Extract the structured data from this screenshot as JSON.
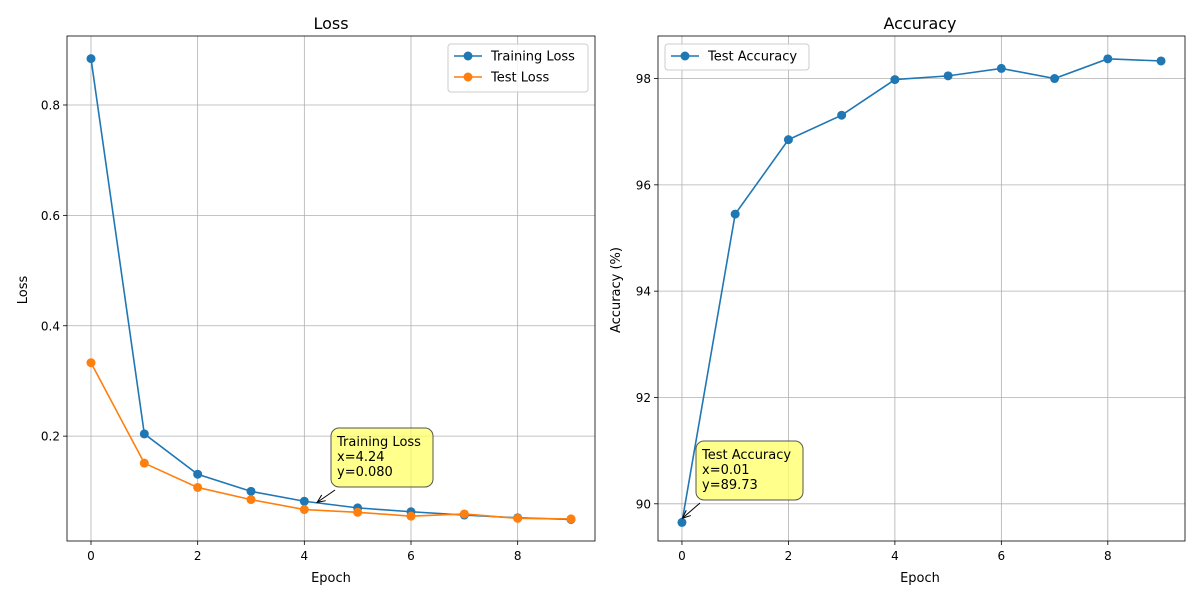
{
  "colors": {
    "blue": "#1f77b4",
    "orange": "#ff7f0e",
    "grid": "#b0b0b0",
    "annotation_bg": "#ffff66"
  },
  "chart_data": [
    {
      "type": "line",
      "title": "Loss",
      "xlabel": "Epoch",
      "ylabel": "Loss",
      "xlim": [
        -0.45,
        9.45
      ],
      "ylim": [
        0.01,
        0.925
      ],
      "xticks": [
        0,
        2,
        4,
        6,
        8
      ],
      "yticks": [
        0.2,
        0.4,
        0.6,
        0.8
      ],
      "ytick_labels": [
        "0.2",
        "0.4",
        "0.6",
        "0.8"
      ],
      "grid": true,
      "legend_position": "top-right",
      "series": [
        {
          "name": "Training Loss",
          "color": "#1f77b4",
          "marker": "circle",
          "x": [
            0,
            1,
            2,
            3,
            4,
            5,
            6,
            7,
            8,
            9
          ],
          "y": [
            0.884,
            0.204,
            0.131,
            0.1,
            0.082,
            0.07,
            0.063,
            0.057,
            0.052,
            0.049
          ]
        },
        {
          "name": "Test Loss",
          "color": "#ff7f0e",
          "marker": "circle",
          "x": [
            0,
            1,
            2,
            3,
            4,
            5,
            6,
            7,
            8,
            9
          ],
          "y": [
            0.333,
            0.151,
            0.107,
            0.085,
            0.067,
            0.062,
            0.055,
            0.059,
            0.051,
            0.05
          ]
        }
      ],
      "annotation": {
        "series": "Training Loss",
        "lines": [
          "Training Loss",
          "x=4.24",
          "y=0.080"
        ],
        "point": [
          4.24,
          0.08
        ]
      }
    },
    {
      "type": "line",
      "title": "Accuracy",
      "xlabel": "Epoch",
      "ylabel": "Accuracy (%)",
      "xlim": [
        -0.45,
        9.45
      ],
      "ylim": [
        89.3,
        98.8
      ],
      "xticks": [
        0,
        2,
        4,
        6,
        8
      ],
      "yticks": [
        90,
        92,
        94,
        96,
        98
      ],
      "ytick_labels": [
        "90",
        "92",
        "94",
        "96",
        "98"
      ],
      "grid": true,
      "legend_position": "top-left",
      "series": [
        {
          "name": "Test Accuracy",
          "color": "#1f77b4",
          "marker": "circle",
          "x": [
            0,
            1,
            2,
            3,
            4,
            5,
            6,
            7,
            8,
            9
          ],
          "y": [
            89.65,
            95.45,
            96.85,
            97.31,
            97.98,
            98.05,
            98.19,
            98.0,
            98.37,
            98.33
          ]
        }
      ],
      "annotation": {
        "series": "Test Accuracy",
        "lines": [
          "Test Accuracy",
          "x=0.01",
          "y=89.73"
        ],
        "point": [
          0.01,
          89.73
        ]
      }
    }
  ]
}
